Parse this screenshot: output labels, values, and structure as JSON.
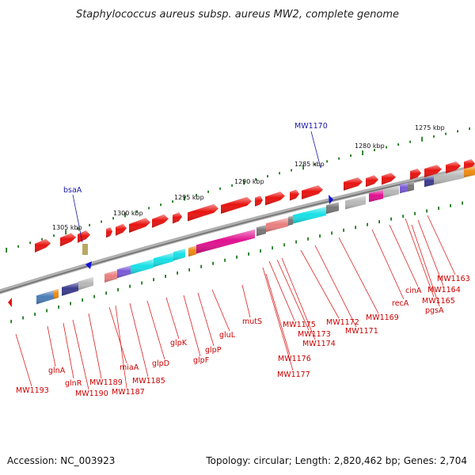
{
  "title": "Staphylococcus aureus subsp. aureus MW2, complete genome",
  "footer": {
    "accession": "Accession: NC_003923",
    "summary": "Topology: circular; Length: 2,820,462 bp; Genes: 2,704"
  },
  "kbp_labels": [
    "1305 kbp",
    "1300 kbp",
    "1295 kbp",
    "1290 kbp",
    "1285 kbp",
    "1280 kbp",
    "1275 kbp"
  ],
  "blue_labels": [
    "bsaA",
    "MW1170"
  ],
  "gene_labels": [
    "MW1193",
    "glnA",
    "glnR",
    "MW1190",
    "MW1189",
    "miaA",
    "MW1187",
    "MW1185",
    "glpD",
    "glpK",
    "glpF",
    "glpP",
    "gluL",
    "mutS",
    "MW1175",
    "MW1176",
    "MW1177",
    "MW1173",
    "MW1174",
    "MW1172",
    "MW1171",
    "MW1169",
    "recA",
    "cinA",
    "MW1165",
    "pgsA",
    "MW1164",
    "MW1163"
  ],
  "colors": {
    "gene": "#e8130f",
    "backbone": "#8f8f8f",
    "tick": "#1f7a1f",
    "cyan": "#17e0e6",
    "magenta": "#e0108f",
    "grey": "#b8b8b8",
    "navy": "#3a3a8f",
    "purple": "#7a5ad6",
    "salmon": "#ea7f7f",
    "orange": "#f08a10",
    "steelblue": "#4a7db8",
    "khaki": "#b8a860",
    "darkgrey": "#777777",
    "blue": "#1010dd"
  }
}
